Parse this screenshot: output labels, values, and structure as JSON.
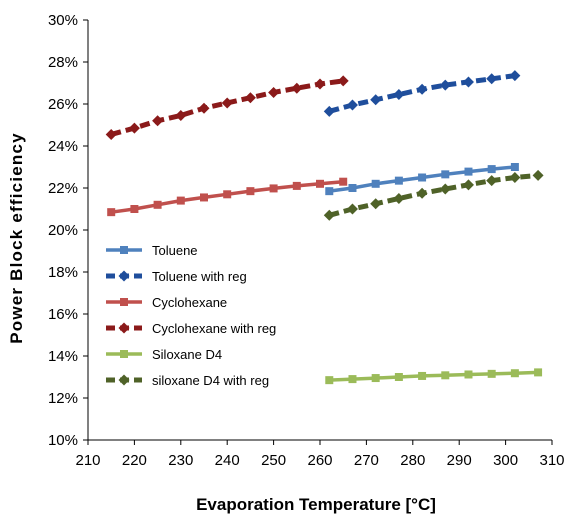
{
  "chart_data": {
    "type": "line",
    "xlabel": "Evaporation Temperature [°C]",
    "ylabel": "Power Block  efficiency",
    "xlim": [
      210,
      310
    ],
    "ylim": [
      0.1,
      0.3
    ],
    "xticks": [
      210,
      220,
      230,
      240,
      250,
      260,
      270,
      280,
      290,
      300,
      310
    ],
    "yticks": [
      0.1,
      0.12,
      0.14,
      0.16,
      0.18,
      0.2,
      0.22,
      0.24,
      0.26,
      0.28,
      0.3
    ],
    "xtick_labels": [
      "210",
      "220",
      "230",
      "240",
      "250",
      "260",
      "270",
      "280",
      "290",
      "300",
      "310"
    ],
    "ytick_labels": [
      "10%",
      "12%",
      "14%",
      "16%",
      "18%",
      "20%",
      "22%",
      "24%",
      "26%",
      "28%",
      "30%"
    ],
    "grid": false,
    "legend_position": "left-middle",
    "series": [
      {
        "name": "Toluene",
        "color": "#4F81BD",
        "style": "solid",
        "marker": "square",
        "x": [
          262,
          267,
          272,
          277,
          282,
          287,
          292,
          297,
          302
        ],
        "y": [
          0.2185,
          0.22,
          0.222,
          0.2235,
          0.225,
          0.2265,
          0.2278,
          0.229,
          0.23
        ]
      },
      {
        "name": "Toluene with reg",
        "color": "#1F4E9C",
        "style": "dashed",
        "marker": "diamond",
        "x": [
          262,
          267,
          272,
          277,
          282,
          287,
          292,
          297,
          302
        ],
        "y": [
          0.2565,
          0.2595,
          0.262,
          0.2645,
          0.267,
          0.269,
          0.2705,
          0.272,
          0.2735
        ]
      },
      {
        "name": "Cyclohexane",
        "color": "#C0504D",
        "style": "solid",
        "marker": "square",
        "x": [
          215,
          220,
          225,
          230,
          235,
          240,
          245,
          250,
          255,
          260,
          265
        ],
        "y": [
          0.2085,
          0.21,
          0.212,
          0.214,
          0.2155,
          0.217,
          0.2185,
          0.2198,
          0.221,
          0.222,
          0.223
        ]
      },
      {
        "name": "Cyclohexane with reg",
        "color": "#8B1A1A",
        "style": "dashed",
        "marker": "diamond",
        "x": [
          215,
          220,
          225,
          230,
          235,
          240,
          245,
          250,
          255,
          260,
          265
        ],
        "y": [
          0.2455,
          0.2485,
          0.252,
          0.2545,
          0.258,
          0.2605,
          0.263,
          0.2655,
          0.2675,
          0.2695,
          0.271
        ]
      },
      {
        "name": "Siloxane D4",
        "color": "#9BBB59",
        "style": "solid",
        "marker": "square",
        "x": [
          262,
          267,
          272,
          277,
          282,
          287,
          292,
          297,
          302,
          307
        ],
        "y": [
          0.1285,
          0.129,
          0.1295,
          0.13,
          0.1305,
          0.1308,
          0.1312,
          0.1315,
          0.1318,
          0.1322
        ]
      },
      {
        "name": "siloxane D4 with reg",
        "color": "#4F6228",
        "style": "dashed",
        "marker": "diamond",
        "x": [
          262,
          267,
          272,
          277,
          282,
          287,
          292,
          297,
          302,
          307
        ],
        "y": [
          0.207,
          0.21,
          0.2125,
          0.215,
          0.2175,
          0.2195,
          0.2215,
          0.2235,
          0.225,
          0.226
        ]
      }
    ]
  }
}
